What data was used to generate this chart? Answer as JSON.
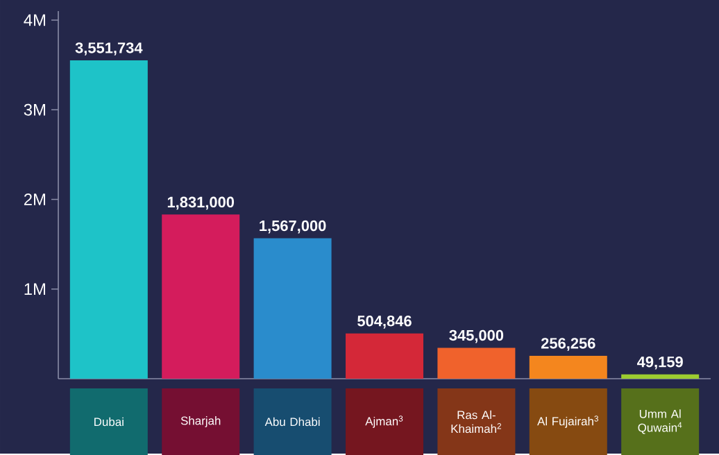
{
  "chart_data": {
    "type": "bar",
    "categories": [
      "Dubai",
      "Sharjah",
      "Abu Dhabi",
      "Ajman$^{3}$",
      "Ras Al-Khaimah$^{2}$",
      "Al Fujairah$^{3}$",
      "Umm Al Quwain$^{4}$"
    ],
    "values": [
      3551734,
      1831000,
      1567000,
      504846,
      345000,
      256256,
      49159
    ],
    "value_labels": [
      "3,551,734",
      "1,831,000",
      "1,567,000",
      "504,846",
      "345,000",
      "256,256",
      "49,159"
    ],
    "colors": [
      "#1ec3c8",
      "#d41c5c",
      "#2a8ccc",
      "#d42838",
      "#f0622c",
      "#f4861e",
      "#9ccc30"
    ],
    "ylim": [
      0,
      4100000
    ],
    "yticks": [
      {
        "value": 1000000,
        "label": "1M"
      },
      {
        "value": 2000000,
        "label": "2M"
      },
      {
        "value": 3000000,
        "label": "3M"
      },
      {
        "value": 4000000,
        "label": "4M"
      }
    ],
    "grid": false
  }
}
